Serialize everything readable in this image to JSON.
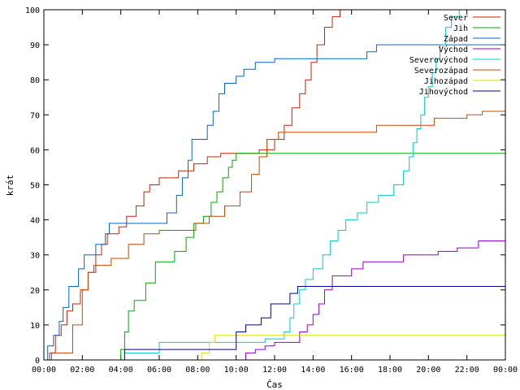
{
  "chart_data": {
    "type": "line",
    "step": true,
    "title": "",
    "xlabel": "Čas",
    "ylabel": "krát",
    "xlim": [
      0,
      24
    ],
    "ylim": [
      0,
      100
    ],
    "grid": false,
    "legend_position": "top-right",
    "x_ticks": [
      {
        "value": 0,
        "label": "00:00"
      },
      {
        "value": 2,
        "label": "02:00"
      },
      {
        "value": 4,
        "label": "04:00"
      },
      {
        "value": 6,
        "label": "06:00"
      },
      {
        "value": 8,
        "label": "08:00"
      },
      {
        "value": 10,
        "label": "10:00"
      },
      {
        "value": 12,
        "label": "12:00"
      },
      {
        "value": 14,
        "label": "14:00"
      },
      {
        "value": 16,
        "label": "16:00"
      },
      {
        "value": 18,
        "label": "18:00"
      },
      {
        "value": 20,
        "label": "20:00"
      },
      {
        "value": 22,
        "label": "22:00"
      },
      {
        "value": 24,
        "label": "00:00"
      }
    ],
    "y_ticks": [
      {
        "value": 0,
        "label": "0"
      },
      {
        "value": 10,
        "label": "10"
      },
      {
        "value": 20,
        "label": "20"
      },
      {
        "value": 30,
        "label": "30"
      },
      {
        "value": 40,
        "label": "40"
      },
      {
        "value": 50,
        "label": "50"
      },
      {
        "value": 60,
        "label": "60"
      },
      {
        "value": 70,
        "label": "70"
      },
      {
        "value": 80,
        "label": "80"
      },
      {
        "value": 90,
        "label": "90"
      },
      {
        "value": 100,
        "label": "100"
      }
    ],
    "series": [
      {
        "name": "Sever",
        "color": "#cc2200",
        "points": [
          [
            0,
            0
          ],
          [
            0.3,
            2
          ],
          [
            0.6,
            7
          ],
          [
            0.9,
            10
          ],
          [
            1.2,
            14
          ],
          [
            1.5,
            16
          ],
          [
            1.9,
            20
          ],
          [
            2.3,
            25
          ],
          [
            2.7,
            30
          ],
          [
            3.0,
            33
          ],
          [
            3.3,
            36
          ],
          [
            3.9,
            38
          ],
          [
            4.3,
            41
          ],
          [
            4.8,
            44
          ],
          [
            5.2,
            48
          ],
          [
            5.5,
            50
          ],
          [
            6.0,
            52
          ],
          [
            7.0,
            54
          ],
          [
            7.8,
            56
          ],
          [
            8.5,
            58
          ],
          [
            9.2,
            59
          ],
          [
            11.2,
            60
          ],
          [
            12.0,
            63
          ],
          [
            12.5,
            67
          ],
          [
            12.9,
            72
          ],
          [
            13.3,
            76
          ],
          [
            13.6,
            80
          ],
          [
            13.9,
            85
          ],
          [
            14.2,
            90
          ],
          [
            14.6,
            95
          ],
          [
            15.0,
            98
          ],
          [
            15.4,
            100
          ]
        ]
      },
      {
        "name": "Jih",
        "color": "#00aa00",
        "points": [
          [
            3.9,
            0
          ],
          [
            4.0,
            3
          ],
          [
            4.2,
            8
          ],
          [
            4.4,
            14
          ],
          [
            4.7,
            17
          ],
          [
            5.3,
            22
          ],
          [
            5.8,
            28
          ],
          [
            6.8,
            31
          ],
          [
            7.4,
            35
          ],
          [
            7.8,
            39
          ],
          [
            8.3,
            41
          ],
          [
            8.7,
            45
          ],
          [
            9.0,
            48
          ],
          [
            9.3,
            52
          ],
          [
            9.6,
            55
          ],
          [
            9.8,
            57
          ],
          [
            10.0,
            59
          ],
          [
            24,
            59
          ]
        ]
      },
      {
        "name": "Západ",
        "color": "#0066cc",
        "points": [
          [
            0,
            0
          ],
          [
            0.2,
            4
          ],
          [
            0.5,
            7
          ],
          [
            0.8,
            11
          ],
          [
            1.0,
            15
          ],
          [
            1.3,
            21
          ],
          [
            1.8,
            26
          ],
          [
            2.1,
            30
          ],
          [
            2.7,
            33
          ],
          [
            3.2,
            36
          ],
          [
            3.4,
            39
          ],
          [
            6.4,
            42
          ],
          [
            6.9,
            47
          ],
          [
            7.2,
            52
          ],
          [
            7.5,
            57
          ],
          [
            7.7,
            63
          ],
          [
            8.5,
            67
          ],
          [
            8.8,
            71
          ],
          [
            9.1,
            76
          ],
          [
            9.4,
            79
          ],
          [
            10.0,
            81
          ],
          [
            10.4,
            83
          ],
          [
            11.0,
            85
          ],
          [
            12.0,
            86
          ],
          [
            16.8,
            88
          ],
          [
            17.3,
            90
          ],
          [
            24,
            90
          ]
        ]
      },
      {
        "name": "Východ",
        "color": "#9900cc",
        "points": [
          [
            10.0,
            0
          ],
          [
            10.5,
            2
          ],
          [
            11.0,
            3
          ],
          [
            11.5,
            4
          ],
          [
            12.0,
            5
          ],
          [
            13.3,
            8
          ],
          [
            13.7,
            10
          ],
          [
            14.0,
            13
          ],
          [
            14.3,
            16
          ],
          [
            14.6,
            20
          ],
          [
            15.0,
            24
          ],
          [
            16.0,
            26
          ],
          [
            16.6,
            28
          ],
          [
            18.7,
            30
          ],
          [
            20.5,
            31
          ],
          [
            21.5,
            32
          ],
          [
            22.6,
            34
          ],
          [
            24,
            34
          ]
        ]
      },
      {
        "name": "Severovýchod",
        "color": "#00cccc",
        "points": [
          [
            4.0,
            0
          ],
          [
            4.2,
            2
          ],
          [
            6.0,
            5
          ],
          [
            10.0,
            5
          ],
          [
            11.5,
            6
          ],
          [
            12.5,
            8
          ],
          [
            12.8,
            12
          ],
          [
            13.0,
            16
          ],
          [
            13.3,
            20
          ],
          [
            13.6,
            23
          ],
          [
            14.0,
            26
          ],
          [
            14.5,
            30
          ],
          [
            14.9,
            34
          ],
          [
            15.3,
            37
          ],
          [
            15.7,
            40
          ],
          [
            16.3,
            42
          ],
          [
            16.8,
            45
          ],
          [
            17.4,
            47
          ],
          [
            18.2,
            50
          ],
          [
            18.7,
            54
          ],
          [
            19.0,
            58
          ],
          [
            19.2,
            62
          ],
          [
            19.4,
            66
          ],
          [
            19.6,
            70
          ],
          [
            19.8,
            75
          ],
          [
            20.0,
            78
          ],
          [
            20.2,
            82
          ],
          [
            20.4,
            86
          ],
          [
            20.6,
            90
          ],
          [
            20.9,
            95
          ],
          [
            21.2,
            98
          ],
          [
            21.6,
            100
          ]
        ]
      },
      {
        "name": "Severozápad",
        "color": "#cc4400",
        "points": [
          [
            0,
            0
          ],
          [
            0.4,
            2
          ],
          [
            1.5,
            10
          ],
          [
            2.0,
            20
          ],
          [
            2.3,
            25
          ],
          [
            2.6,
            27
          ],
          [
            3.5,
            29
          ],
          [
            4.4,
            33
          ],
          [
            5.2,
            36
          ],
          [
            6.0,
            37
          ],
          [
            7.9,
            39
          ],
          [
            8.6,
            41
          ],
          [
            9.4,
            44
          ],
          [
            10.2,
            48
          ],
          [
            10.8,
            53
          ],
          [
            11.2,
            58
          ],
          [
            11.6,
            63
          ],
          [
            12.2,
            65
          ],
          [
            15.0,
            65
          ],
          [
            17.3,
            67
          ],
          [
            20.3,
            69
          ],
          [
            22.0,
            70
          ],
          [
            22.8,
            71
          ],
          [
            24,
            71
          ]
        ]
      },
      {
        "name": "Jihozápad",
        "color": "#dddd00",
        "points": [
          [
            8.0,
            0
          ],
          [
            8.2,
            2
          ],
          [
            8.6,
            5
          ],
          [
            8.9,
            7
          ],
          [
            24,
            7
          ]
        ]
      },
      {
        "name": "Jihovýchod",
        "color": "#000099",
        "points": [
          [
            4.1,
            0
          ],
          [
            4.2,
            3
          ],
          [
            8.5,
            3
          ],
          [
            10.0,
            8
          ],
          [
            10.5,
            10
          ],
          [
            11.3,
            12
          ],
          [
            11.8,
            16
          ],
          [
            12.8,
            19
          ],
          [
            13.2,
            21
          ],
          [
            24,
            21
          ]
        ]
      }
    ]
  }
}
